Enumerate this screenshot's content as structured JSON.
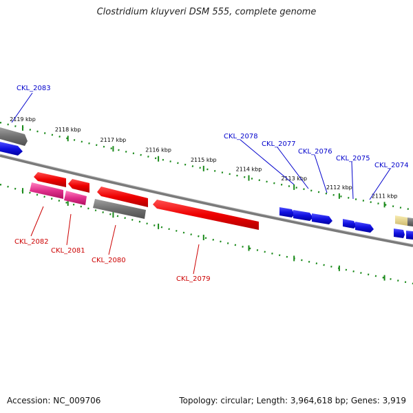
{
  "title": "Clostridium kluyveri DSM 555, complete genome",
  "footer": {
    "accession": "Accession: NC_009706",
    "summary": "Topology: circular; Length: 3,964,618 bp; Genes: 3,919"
  },
  "colors": {
    "backbone": "#808080",
    "tick": "#1a8a1a",
    "forward_label": "#0000cc",
    "reverse_label": "#cc0000",
    "blue_gene": "#1010e0",
    "red_gene": "#ee0000",
    "magenta_gene": "#e0308c",
    "grey_gene": "#707070",
    "yellow_gene": "#e8d890"
  },
  "kbp_ticks": [
    "2119 kbp",
    "2118 kbp",
    "2117 kbp",
    "2116 kbp",
    "2115 kbp",
    "2114 kbp",
    "2113 kbp",
    "2112 kbp",
    "2111 kbp"
  ],
  "gene_labels": {
    "forward": [
      "CKL_2083",
      "CKL_2078",
      "CKL_2077",
      "CKL_2076",
      "CKL_2075",
      "CKL_2074"
    ],
    "reverse": [
      "CKL_2082",
      "CKL_2081",
      "CKL_2080",
      "CKL_2079"
    ]
  }
}
